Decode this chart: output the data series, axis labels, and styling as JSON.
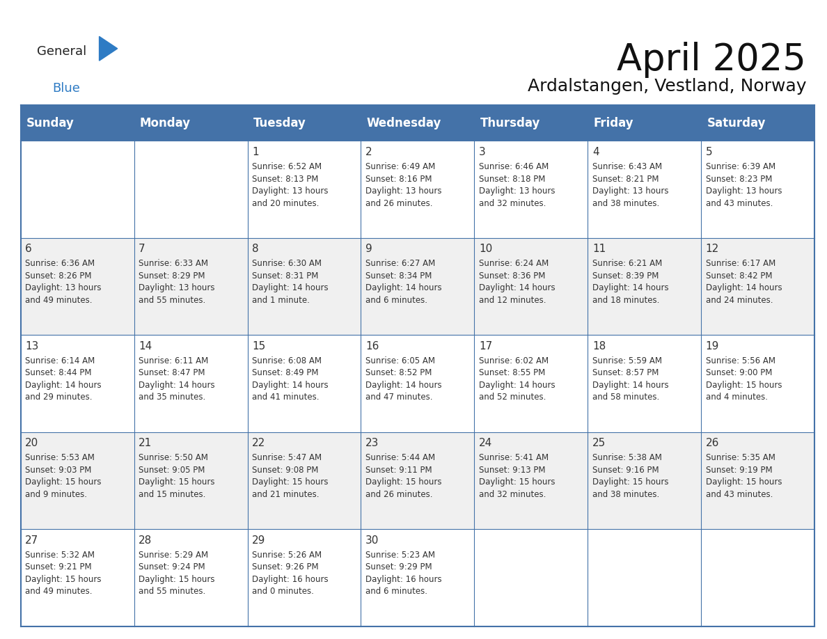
{
  "title": "April 2025",
  "subtitle": "Ardalstangen, Vestland, Norway",
  "header_color": "#4472a8",
  "header_text_color": "#ffffff",
  "cell_bg_white": "#ffffff",
  "cell_bg_gray": "#f0f0f0",
  "border_color": "#4472a8",
  "text_color": "#333333",
  "day_names": [
    "Sunday",
    "Monday",
    "Tuesday",
    "Wednesday",
    "Thursday",
    "Friday",
    "Saturday"
  ],
  "title_fontsize": 38,
  "subtitle_fontsize": 18,
  "header_fontsize": 12,
  "day_num_fontsize": 11,
  "cell_fontsize": 8.5,
  "calendar": [
    [
      {
        "day": "",
        "text": ""
      },
      {
        "day": "",
        "text": ""
      },
      {
        "day": "1",
        "text": "Sunrise: 6:52 AM\nSunset: 8:13 PM\nDaylight: 13 hours\nand 20 minutes."
      },
      {
        "day": "2",
        "text": "Sunrise: 6:49 AM\nSunset: 8:16 PM\nDaylight: 13 hours\nand 26 minutes."
      },
      {
        "day": "3",
        "text": "Sunrise: 6:46 AM\nSunset: 8:18 PM\nDaylight: 13 hours\nand 32 minutes."
      },
      {
        "day": "4",
        "text": "Sunrise: 6:43 AM\nSunset: 8:21 PM\nDaylight: 13 hours\nand 38 minutes."
      },
      {
        "day": "5",
        "text": "Sunrise: 6:39 AM\nSunset: 8:23 PM\nDaylight: 13 hours\nand 43 minutes."
      }
    ],
    [
      {
        "day": "6",
        "text": "Sunrise: 6:36 AM\nSunset: 8:26 PM\nDaylight: 13 hours\nand 49 minutes."
      },
      {
        "day": "7",
        "text": "Sunrise: 6:33 AM\nSunset: 8:29 PM\nDaylight: 13 hours\nand 55 minutes."
      },
      {
        "day": "8",
        "text": "Sunrise: 6:30 AM\nSunset: 8:31 PM\nDaylight: 14 hours\nand 1 minute."
      },
      {
        "day": "9",
        "text": "Sunrise: 6:27 AM\nSunset: 8:34 PM\nDaylight: 14 hours\nand 6 minutes."
      },
      {
        "day": "10",
        "text": "Sunrise: 6:24 AM\nSunset: 8:36 PM\nDaylight: 14 hours\nand 12 minutes."
      },
      {
        "day": "11",
        "text": "Sunrise: 6:21 AM\nSunset: 8:39 PM\nDaylight: 14 hours\nand 18 minutes."
      },
      {
        "day": "12",
        "text": "Sunrise: 6:17 AM\nSunset: 8:42 PM\nDaylight: 14 hours\nand 24 minutes."
      }
    ],
    [
      {
        "day": "13",
        "text": "Sunrise: 6:14 AM\nSunset: 8:44 PM\nDaylight: 14 hours\nand 29 minutes."
      },
      {
        "day": "14",
        "text": "Sunrise: 6:11 AM\nSunset: 8:47 PM\nDaylight: 14 hours\nand 35 minutes."
      },
      {
        "day": "15",
        "text": "Sunrise: 6:08 AM\nSunset: 8:49 PM\nDaylight: 14 hours\nand 41 minutes."
      },
      {
        "day": "16",
        "text": "Sunrise: 6:05 AM\nSunset: 8:52 PM\nDaylight: 14 hours\nand 47 minutes."
      },
      {
        "day": "17",
        "text": "Sunrise: 6:02 AM\nSunset: 8:55 PM\nDaylight: 14 hours\nand 52 minutes."
      },
      {
        "day": "18",
        "text": "Sunrise: 5:59 AM\nSunset: 8:57 PM\nDaylight: 14 hours\nand 58 minutes."
      },
      {
        "day": "19",
        "text": "Sunrise: 5:56 AM\nSunset: 9:00 PM\nDaylight: 15 hours\nand 4 minutes."
      }
    ],
    [
      {
        "day": "20",
        "text": "Sunrise: 5:53 AM\nSunset: 9:03 PM\nDaylight: 15 hours\nand 9 minutes."
      },
      {
        "day": "21",
        "text": "Sunrise: 5:50 AM\nSunset: 9:05 PM\nDaylight: 15 hours\nand 15 minutes."
      },
      {
        "day": "22",
        "text": "Sunrise: 5:47 AM\nSunset: 9:08 PM\nDaylight: 15 hours\nand 21 minutes."
      },
      {
        "day": "23",
        "text": "Sunrise: 5:44 AM\nSunset: 9:11 PM\nDaylight: 15 hours\nand 26 minutes."
      },
      {
        "day": "24",
        "text": "Sunrise: 5:41 AM\nSunset: 9:13 PM\nDaylight: 15 hours\nand 32 minutes."
      },
      {
        "day": "25",
        "text": "Sunrise: 5:38 AM\nSunset: 9:16 PM\nDaylight: 15 hours\nand 38 minutes."
      },
      {
        "day": "26",
        "text": "Sunrise: 5:35 AM\nSunset: 9:19 PM\nDaylight: 15 hours\nand 43 minutes."
      }
    ],
    [
      {
        "day": "27",
        "text": "Sunrise: 5:32 AM\nSunset: 9:21 PM\nDaylight: 15 hours\nand 49 minutes."
      },
      {
        "day": "28",
        "text": "Sunrise: 5:29 AM\nSunset: 9:24 PM\nDaylight: 15 hours\nand 55 minutes."
      },
      {
        "day": "29",
        "text": "Sunrise: 5:26 AM\nSunset: 9:26 PM\nDaylight: 16 hours\nand 0 minutes."
      },
      {
        "day": "30",
        "text": "Sunrise: 5:23 AM\nSunset: 9:29 PM\nDaylight: 16 hours\nand 6 minutes."
      },
      {
        "day": "",
        "text": ""
      },
      {
        "day": "",
        "text": ""
      },
      {
        "day": "",
        "text": ""
      }
    ]
  ],
  "logo_general_color": "#222222",
  "logo_blue_color": "#2e7bc4",
  "logo_triangle_color": "#2e7bc4"
}
